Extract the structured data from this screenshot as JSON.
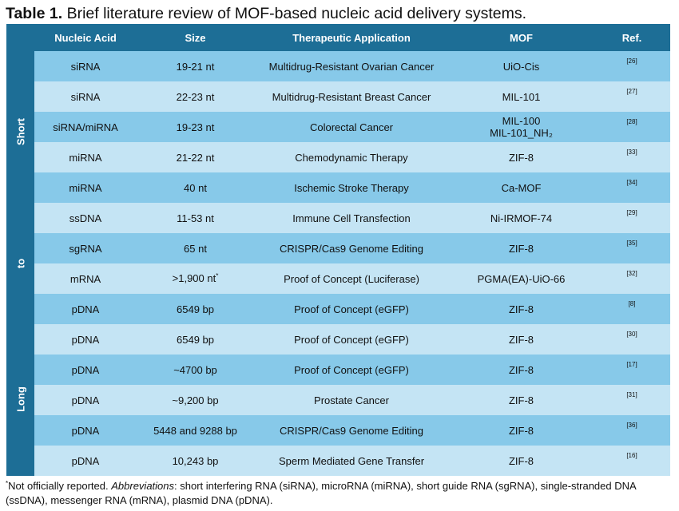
{
  "title": {
    "label": "Table 1.",
    "text": " Brief literature review of MOF-based nucleic acid delivery systems."
  },
  "table": {
    "headers": [
      "Nucleic Acid",
      "Size",
      "Therapeutic Application",
      "MOF",
      "Ref."
    ],
    "side_labels": [
      "Short",
      "to",
      "Long"
    ],
    "rows": [
      {
        "acid": "siRNA",
        "size": "19-21 nt",
        "application": "Multidrug-Resistant Ovarian Cancer",
        "mof": "UiO-Cis",
        "mof2": "",
        "ref": "[26]",
        "size_sup": ""
      },
      {
        "acid": "siRNA",
        "size": "22-23 nt",
        "application": "Multidrug-Resistant Breast Cancer",
        "mof": "MIL-101",
        "mof2": "",
        "ref": "[27]",
        "size_sup": ""
      },
      {
        "acid": "siRNA/miRNA",
        "size": "19-23 nt",
        "application": "Colorectal Cancer",
        "mof": "MIL-100",
        "mof2": "MIL-101_NH₂",
        "ref": "[28]",
        "size_sup": ""
      },
      {
        "acid": "miRNA",
        "size": "21-22 nt",
        "application": "Chemodynamic Therapy",
        "mof": "ZIF-8",
        "mof2": "",
        "ref": "[33]",
        "size_sup": ""
      },
      {
        "acid": "miRNA",
        "size": "40 nt",
        "application": "Ischemic Stroke Therapy",
        "mof": "Ca-MOF",
        "mof2": "",
        "ref": "[34]",
        "size_sup": ""
      },
      {
        "acid": "ssDNA",
        "size": "11-53 nt",
        "application": "Immune Cell Transfection",
        "mof": "Ni-IRMOF-74",
        "mof2": "",
        "ref": "[29]",
        "size_sup": ""
      },
      {
        "acid": "sgRNA",
        "size": "65 nt",
        "application": "CRISPR/Cas9 Genome Editing",
        "mof": "ZIF-8",
        "mof2": "",
        "ref": "[35]",
        "size_sup": ""
      },
      {
        "acid": "mRNA",
        "size": ">1,900 nt",
        "application": "Proof of Concept (Luciferase)",
        "mof": "PGMA(EA)-UiO-66",
        "mof2": "",
        "ref": "[32]",
        "size_sup": "*"
      },
      {
        "acid": "pDNA",
        "size": "6549 bp",
        "application": "Proof of Concept (eGFP)",
        "mof": "ZIF-8",
        "mof2": "",
        "ref": "[8]",
        "size_sup": ""
      },
      {
        "acid": "pDNA",
        "size": "6549 bp",
        "application": "Proof of Concept (eGFP)",
        "mof": "ZIF-8",
        "mof2": "",
        "ref": "[30]",
        "size_sup": ""
      },
      {
        "acid": "pDNA",
        "size": "~4700 bp",
        "application": "Proof of Concept (eGFP)",
        "mof": "ZIF-8",
        "mof2": "",
        "ref": "[17]",
        "size_sup": ""
      },
      {
        "acid": "pDNA",
        "size": "~9,200 bp",
        "application": "Prostate Cancer",
        "mof": "ZIF-8",
        "mof2": "",
        "ref": "[31]",
        "size_sup": ""
      },
      {
        "acid": "pDNA",
        "size": "5448 and 9288 bp",
        "application": "CRISPR/Cas9 Genome Editing",
        "mof": "ZIF-8",
        "mof2": "",
        "ref": "[36]",
        "size_sup": ""
      },
      {
        "acid": "pDNA",
        "size": "10,243 bp",
        "application": "Sperm Mediated Gene Transfer",
        "mof": "ZIF-8",
        "mof2": "",
        "ref": "[16]",
        "size_sup": ""
      }
    ]
  },
  "footnote": {
    "marker": "*",
    "note": "Not officially reported. ",
    "abbrev_label": "Abbreviations",
    "abbrev_text": ": short interfering RNA (siRNA), microRNA (miRNA), short guide RNA (sgRNA), single-stranded DNA (ssDNA), messenger RNA (mRNA), plasmid DNA (pDNA)."
  },
  "colors": {
    "header_bg": "#1d6e96",
    "row_dark": "#87c9e9",
    "row_light": "#c4e4f4"
  }
}
